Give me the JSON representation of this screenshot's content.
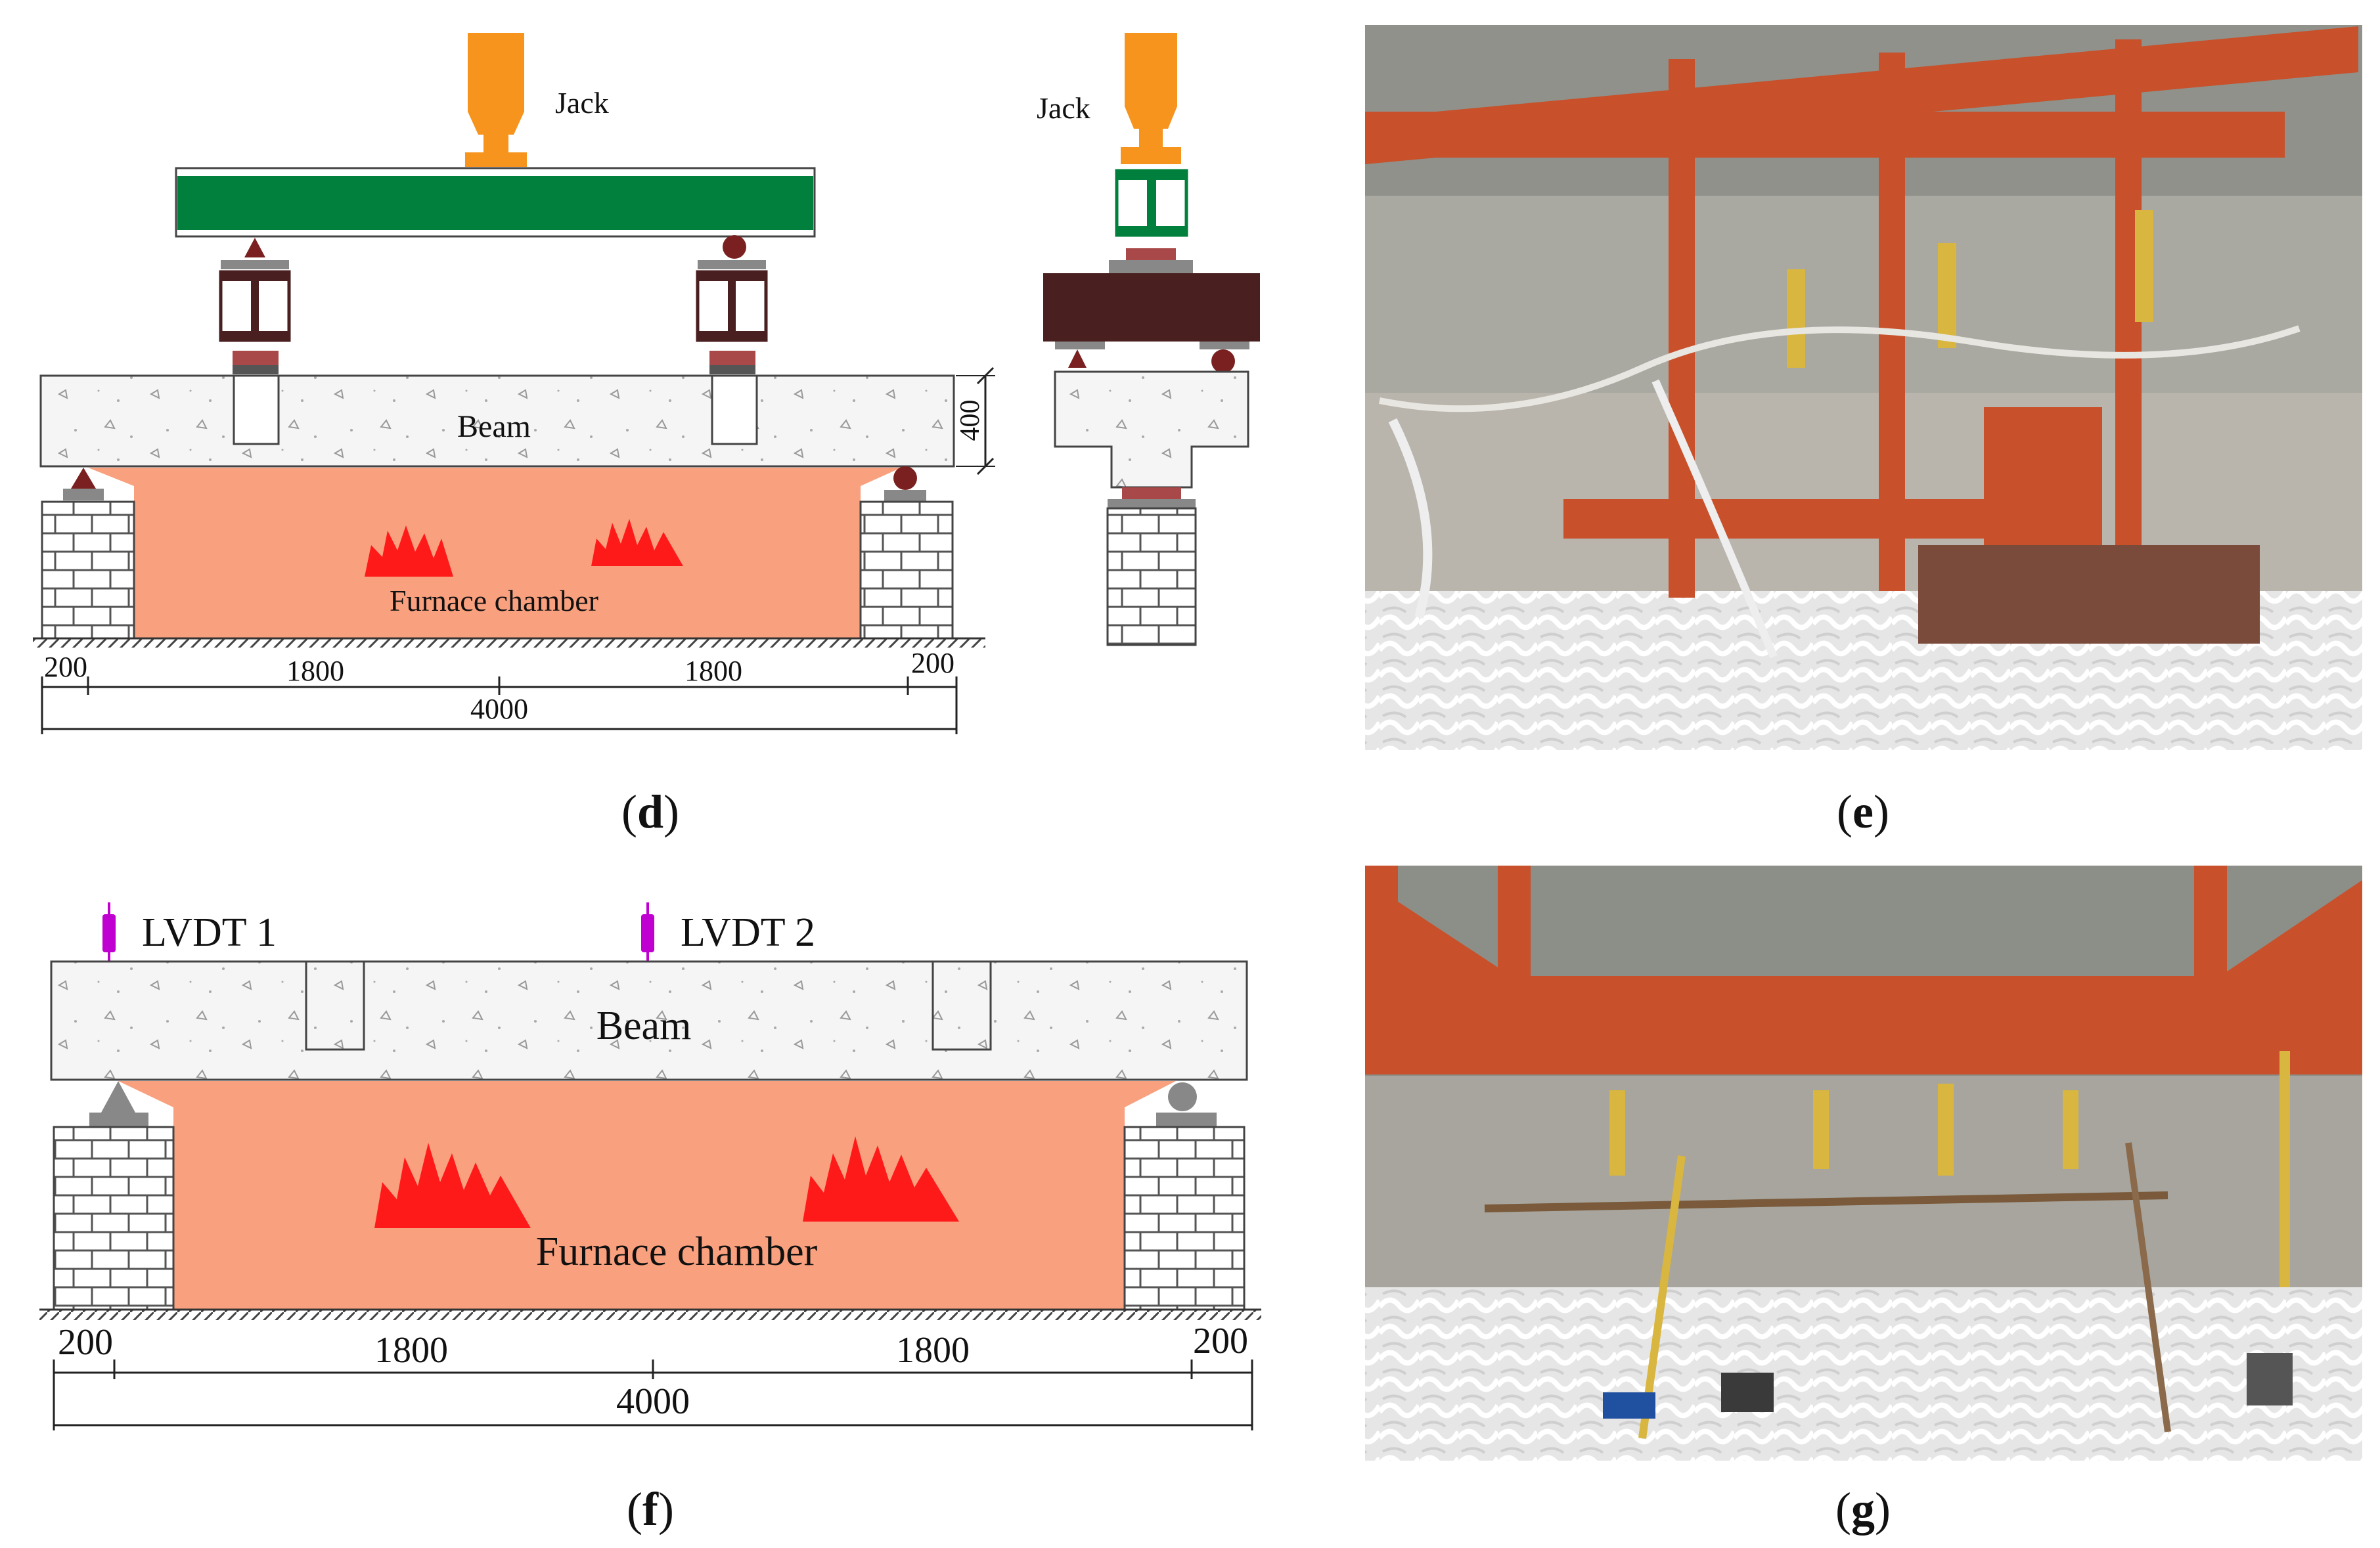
{
  "panel_d": {
    "caption_open": "(",
    "caption_letter": "d",
    "caption_close": ")",
    "jack_label": "Jack",
    "side_jack_label": "Jack",
    "beam_label": "Beam",
    "furnace_label": "Furnace chamber",
    "dim_height": "400",
    "dims": {
      "end_left": "200",
      "span_left": "1800",
      "span_right": "1800",
      "end_right": "200",
      "total": "4000"
    }
  },
  "panel_e": {
    "caption_open": "(",
    "caption_letter": "e",
    "caption_close": ")"
  },
  "panel_f": {
    "caption_open": "(",
    "caption_letter": "f",
    "caption_close": ")",
    "lvdt1_label": "LVDT 1",
    "lvdt2_label": "LVDT 2",
    "beam_label": "Beam",
    "furnace_label": "Furnace chamber",
    "dims": {
      "end_left": "200",
      "span_left": "1800",
      "span_right": "1800",
      "end_right": "200",
      "total": "4000"
    }
  },
  "panel_g": {
    "caption_open": "(",
    "caption_letter": "g",
    "caption_close": ")"
  },
  "colors": {
    "jack": "#f7941d",
    "spreader_beam": "#00803c",
    "steel_block": "#4a1f1f",
    "bearing_plate": "#a84848",
    "furnace": "#f9a07e",
    "flame": "#ff1a1a",
    "lvdt": "#c000d0",
    "steel_frame": "#c8502a"
  }
}
